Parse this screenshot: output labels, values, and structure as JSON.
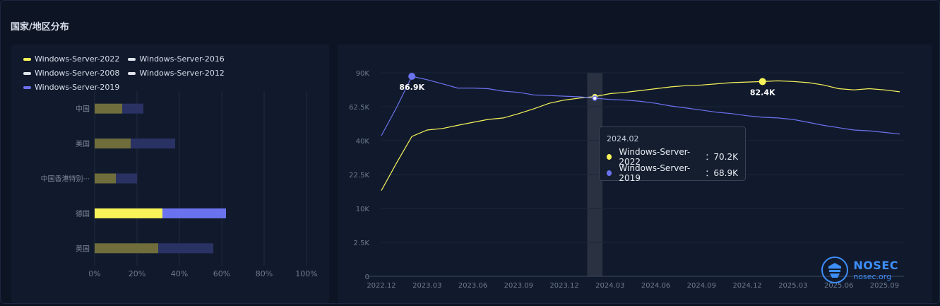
{
  "title": "国家/地区分布",
  "colors": {
    "server2022": "#f7f359",
    "server2016": "#dfe3ea",
    "server2008": "#dfe3ea",
    "server2012": "#dfe3ea",
    "server2019": "#6b72ee"
  },
  "legend": [
    {
      "name": "Windows-Server-2022",
      "color": "#f7f359"
    },
    {
      "name": "Windows-Server-2016",
      "color": "#dfe3ea"
    },
    {
      "name": "Windows-Server-2008",
      "color": "#dfe3ea"
    },
    {
      "name": "Windows-Server-2012",
      "color": "#dfe3ea"
    },
    {
      "name": "Windows-Server-2019",
      "color": "#6b72ee"
    }
  ],
  "tooltip": {
    "title": "2024.02",
    "rows": [
      {
        "name": "Windows-Server-2022",
        "value": "70.2K",
        "color": "#f7f359"
      },
      {
        "name": "Windows-Server-2019",
        "value": "68.9K",
        "color": "#6b72ee"
      }
    ]
  },
  "watermark": {
    "name": "NOSEC",
    "site": "nosec.org"
  },
  "chart_data": [
    {
      "type": "bar",
      "orientation": "horizontal",
      "stacked": true,
      "categories": [
        "中国",
        "美国",
        "中国香港特别···",
        "德国",
        "英国"
      ],
      "series": [
        {
          "name": "Windows-Server-2022",
          "values": [
            13,
            17,
            10,
            32,
            30
          ]
        },
        {
          "name": "Windows-Server-2019",
          "values": [
            10,
            21,
            10,
            30,
            26
          ]
        }
      ],
      "highlighted_category": "德国",
      "xlim": [
        0,
        100
      ],
      "x_ticks": [
        "0%",
        "20%",
        "40%",
        "60%",
        "80%",
        "100%"
      ],
      "grid": true
    },
    {
      "type": "line",
      "x": [
        "2022.12",
        "2023.01",
        "2023.02",
        "2023.03",
        "2023.04",
        "2023.05",
        "2023.06",
        "2023.07",
        "2023.08",
        "2023.09",
        "2023.10",
        "2023.11",
        "2023.12",
        "2024.01",
        "2024.02",
        "2024.03",
        "2024.04",
        "2024.05",
        "2024.06",
        "2024.07",
        "2024.08",
        "2024.09",
        "2024.10",
        "2024.11",
        "2024.12",
        "2025.01",
        "2025.02",
        "2025.03",
        "2025.04",
        "2025.05",
        "2025.06",
        "2025.07",
        "2025.08",
        "2025.09",
        "2025.10"
      ],
      "x_ticks": [
        "2022.12",
        "2023.03",
        "2023.06",
        "2023.09",
        "2023.12",
        "2024.03",
        "2024.06",
        "2024.09",
        "2024.12",
        "2025.03",
        "2025.06",
        "2025.09"
      ],
      "y_ticks": [
        "0",
        "2.5K",
        "10K",
        "22.5K",
        "40K",
        "62.5K",
        "90K"
      ],
      "y_scale": "sqrt",
      "ylim": [
        0,
        90000
      ],
      "series": [
        {
          "name": "Windows-Server-2022",
          "values": [
            16000,
            28000,
            42500,
            46500,
            47500,
            49500,
            51500,
            53500,
            54500,
            57500,
            61000,
            65000,
            67500,
            69000,
            70200,
            72500,
            73500,
            75000,
            76500,
            78000,
            79000,
            79500,
            80500,
            81500,
            82000,
            82400,
            83000,
            82500,
            81500,
            79500,
            76500,
            75500,
            76500,
            75500,
            74000
          ]
        },
        {
          "name": "Windows-Server-2019",
          "values": [
            43000,
            62000,
            86900,
            84000,
            80500,
            77000,
            77000,
            76500,
            74500,
            73500,
            71500,
            71000,
            70500,
            70000,
            68900,
            68000,
            67500,
            66500,
            65000,
            63000,
            61500,
            60000,
            58500,
            57500,
            56000,
            55000,
            54500,
            53500,
            51500,
            49500,
            48000,
            46500,
            46000,
            45000,
            44000
          ]
        }
      ],
      "annotations": [
        {
          "series": "Windows-Server-2019",
          "x": "2023.02",
          "label": "86.9K"
        },
        {
          "series": "Windows-Server-2022",
          "x": "2025.01",
          "label": "82.4K"
        }
      ],
      "highlighted_x": "2024.02",
      "grid": true
    }
  ]
}
